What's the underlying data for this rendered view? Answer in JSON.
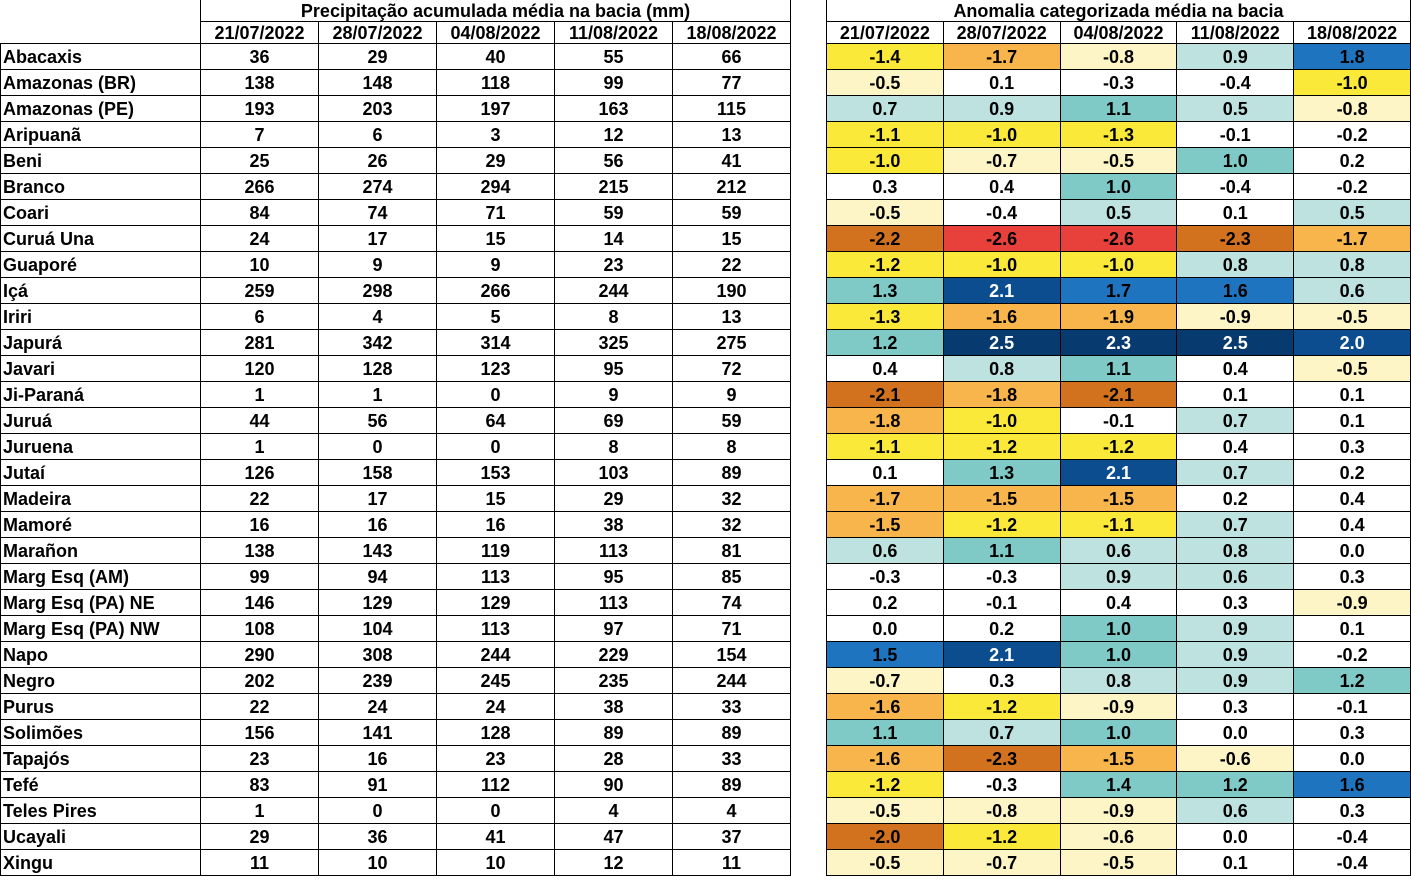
{
  "precip": {
    "title": "Precipitação acumulada média na bacia (mm)",
    "dates": [
      "21/07/2022",
      "28/07/2022",
      "04/08/2022",
      "11/08/2022",
      "18/08/2022"
    ]
  },
  "anom": {
    "title": "Anomalia categorizada média na bacia",
    "dates": [
      "21/07/2022",
      "28/07/2022",
      "04/08/2022",
      "11/08/2022",
      "18/08/2022"
    ]
  },
  "rows": [
    {
      "name": "Abacaxis",
      "precip": [
        "36",
        "29",
        "40",
        "55",
        "66"
      ],
      "anom": [
        "-1.4",
        "-1.7",
        "-0.8",
        "0.9",
        "1.8"
      ]
    },
    {
      "name": "Amazonas (BR)",
      "precip": [
        "138",
        "148",
        "118",
        "99",
        "77"
      ],
      "anom": [
        "-0.5",
        "0.1",
        "-0.3",
        "-0.4",
        "-1.0"
      ]
    },
    {
      "name": "Amazonas (PE)",
      "precip": [
        "193",
        "203",
        "197",
        "163",
        "115"
      ],
      "anom": [
        "0.7",
        "0.9",
        "1.1",
        "0.5",
        "-0.8"
      ]
    },
    {
      "name": "Aripuanã",
      "precip": [
        "7",
        "6",
        "3",
        "12",
        "13"
      ],
      "anom": [
        "-1.1",
        "-1.0",
        "-1.3",
        "-0.1",
        "-0.2"
      ]
    },
    {
      "name": "Beni",
      "precip": [
        "25",
        "26",
        "29",
        "56",
        "41"
      ],
      "anom": [
        "-1.0",
        "-0.7",
        "-0.5",
        "1.0",
        "0.2"
      ]
    },
    {
      "name": "Branco",
      "precip": [
        "266",
        "274",
        "294",
        "215",
        "212"
      ],
      "anom": [
        "0.3",
        "0.4",
        "1.0",
        "-0.4",
        "-0.2"
      ]
    },
    {
      "name": "Coari",
      "precip": [
        "84",
        "74",
        "71",
        "59",
        "59"
      ],
      "anom": [
        "-0.5",
        "-0.4",
        "0.5",
        "0.1",
        "0.5"
      ]
    },
    {
      "name": "Curuá Una",
      "precip": [
        "24",
        "17",
        "15",
        "14",
        "15"
      ],
      "anom": [
        "-2.2",
        "-2.6",
        "-2.6",
        "-2.3",
        "-1.7"
      ]
    },
    {
      "name": "Guaporé",
      "precip": [
        "10",
        "9",
        "9",
        "23",
        "22"
      ],
      "anom": [
        "-1.2",
        "-1.0",
        "-1.0",
        "0.8",
        "0.8"
      ]
    },
    {
      "name": "Içá",
      "precip": [
        "259",
        "298",
        "266",
        "244",
        "190"
      ],
      "anom": [
        "1.3",
        "2.1",
        "1.7",
        "1.6",
        "0.6"
      ]
    },
    {
      "name": "Iriri",
      "precip": [
        "6",
        "4",
        "5",
        "8",
        "13"
      ],
      "anom": [
        "-1.3",
        "-1.6",
        "-1.9",
        "-0.9",
        "-0.5"
      ]
    },
    {
      "name": "Japurá",
      "precip": [
        "281",
        "342",
        "314",
        "325",
        "275"
      ],
      "anom": [
        "1.2",
        "2.5",
        "2.3",
        "2.5",
        "2.0"
      ]
    },
    {
      "name": "Javari",
      "precip": [
        "120",
        "128",
        "123",
        "95",
        "72"
      ],
      "anom": [
        "0.4",
        "0.8",
        "1.1",
        "0.4",
        "-0.5"
      ]
    },
    {
      "name": "Ji-Paraná",
      "precip": [
        "1",
        "1",
        "0",
        "9",
        "9"
      ],
      "anom": [
        "-2.1",
        "-1.8",
        "-2.1",
        "0.1",
        "0.1"
      ]
    },
    {
      "name": "Juruá",
      "precip": [
        "44",
        "56",
        "64",
        "69",
        "59"
      ],
      "anom": [
        "-1.8",
        "-1.0",
        "-0.1",
        "0.7",
        "0.1"
      ]
    },
    {
      "name": "Juruena",
      "precip": [
        "1",
        "0",
        "0",
        "8",
        "8"
      ],
      "anom": [
        "-1.1",
        "-1.2",
        "-1.2",
        "0.4",
        "0.3"
      ]
    },
    {
      "name": "Jutaí",
      "precip": [
        "126",
        "158",
        "153",
        "103",
        "89"
      ],
      "anom": [
        "0.1",
        "1.3",
        "2.1",
        "0.7",
        "0.2"
      ]
    },
    {
      "name": "Madeira",
      "precip": [
        "22",
        "17",
        "15",
        "29",
        "32"
      ],
      "anom": [
        "-1.7",
        "-1.5",
        "-1.5",
        "0.2",
        "0.4"
      ]
    },
    {
      "name": "Mamoré",
      "precip": [
        "16",
        "16",
        "16",
        "38",
        "32"
      ],
      "anom": [
        "-1.5",
        "-1.2",
        "-1.1",
        "0.7",
        "0.4"
      ]
    },
    {
      "name": "Marañon",
      "precip": [
        "138",
        "143",
        "119",
        "113",
        "81"
      ],
      "anom": [
        "0.6",
        "1.1",
        "0.6",
        "0.8",
        "0.0"
      ]
    },
    {
      "name": "Marg Esq (AM)",
      "precip": [
        "99",
        "94",
        "113",
        "95",
        "85"
      ],
      "anom": [
        "-0.3",
        "-0.3",
        "0.9",
        "0.6",
        "0.3"
      ]
    },
    {
      "name": "Marg Esq (PA) NE",
      "precip": [
        "146",
        "129",
        "129",
        "113",
        "74"
      ],
      "anom": [
        "0.2",
        "-0.1",
        "0.4",
        "0.3",
        "-0.9"
      ]
    },
    {
      "name": "Marg Esq (PA) NW",
      "precip": [
        "108",
        "104",
        "113",
        "97",
        "71"
      ],
      "anom": [
        "0.0",
        "0.2",
        "1.0",
        "0.9",
        "0.1"
      ]
    },
    {
      "name": "Napo",
      "precip": [
        "290",
        "308",
        "244",
        "229",
        "154"
      ],
      "anom": [
        "1.5",
        "2.1",
        "1.0",
        "0.9",
        "-0.2"
      ]
    },
    {
      "name": "Negro",
      "precip": [
        "202",
        "239",
        "245",
        "235",
        "244"
      ],
      "anom": [
        "-0.7",
        "0.3",
        "0.8",
        "0.9",
        "1.2"
      ]
    },
    {
      "name": "Purus",
      "precip": [
        "22",
        "24",
        "24",
        "38",
        "33"
      ],
      "anom": [
        "-1.6",
        "-1.2",
        "-0.9",
        "0.3",
        "-0.1"
      ]
    },
    {
      "name": "Solimões",
      "precip": [
        "156",
        "141",
        "128",
        "89",
        "89"
      ],
      "anom": [
        "1.1",
        "0.7",
        "1.0",
        "0.0",
        "0.3"
      ]
    },
    {
      "name": "Tapajós",
      "precip": [
        "23",
        "16",
        "23",
        "28",
        "33"
      ],
      "anom": [
        "-1.6",
        "-2.3",
        "-1.5",
        "-0.6",
        "0.0"
      ]
    },
    {
      "name": "Tefé",
      "precip": [
        "83",
        "91",
        "112",
        "90",
        "89"
      ],
      "anom": [
        "-1.2",
        "-0.3",
        "1.4",
        "1.2",
        "1.6"
      ]
    },
    {
      "name": "Teles Pires",
      "precip": [
        "1",
        "0",
        "0",
        "4",
        "4"
      ],
      "anom": [
        "-0.5",
        "-0.8",
        "-0.9",
        "0.6",
        "0.3"
      ]
    },
    {
      "name": "Ucayali",
      "precip": [
        "29",
        "36",
        "41",
        "47",
        "37"
      ],
      "anom": [
        "-2.0",
        "-1.2",
        "-0.6",
        "0.0",
        "-0.4"
      ]
    },
    {
      "name": "Xingu",
      "precip": [
        "11",
        "10",
        "10",
        "12",
        "11"
      ],
      "anom": [
        "-0.5",
        "-0.7",
        "-0.5",
        "0.1",
        "-0.4"
      ]
    }
  ],
  "anomaly_colors": {
    "le_-2.5": "#e8413b",
    "le_-2.0": "#d2721f",
    "le_-1.5": "#f7b54b",
    "le_-1.0": "#fbe93a",
    "le_-0.5": "#fdf5c5",
    "neutral": "#ffffff",
    "ge_0.5": "#bde2e0",
    "ge_1.0": "#7fcac7",
    "ge_1.5": "#1f74c0",
    "ge_2.0": "#0b4d8e",
    "ge_2.5": "#073b70"
  }
}
